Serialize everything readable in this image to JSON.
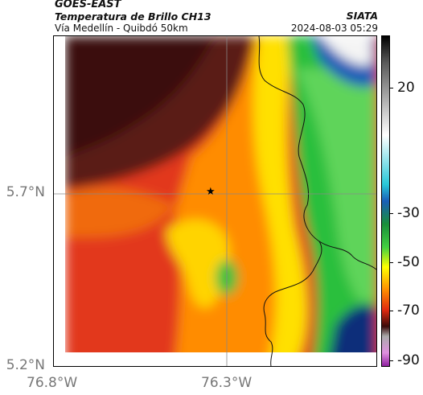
{
  "header": {
    "satellite": "GOES-EAST",
    "product": "Temperatura de Brillo CH13",
    "route": "Vía Medellín - Quibdó 50km",
    "agency": "SIATA",
    "timestamp": "2024-08-03 05:29"
  },
  "axes": {
    "y_ticks": [
      "5.7°N",
      "5.2°N"
    ],
    "x_ticks": [
      "76.8°W",
      "76.3°W"
    ]
  },
  "colorbar": {
    "labels": [
      "20",
      "-30",
      "-50",
      "-70",
      "-90"
    ],
    "colors": [
      "#000000",
      "#ffffff",
      "#1b8fd8",
      "#16b04a",
      "#ffff00",
      "#ff8a00",
      "#e02a10",
      "#3c0a0a",
      "#c838c8"
    ]
  },
  "map": {
    "marker_icon": "star-icon",
    "palette": {
      "dark_red": "#4a1512",
      "red": "#d63a12",
      "orange": "#ff8c00",
      "yellow": "#ffd400",
      "green": "#2bbf3d",
      "blue": "#1a5fb8",
      "white": "#f4f4f4"
    }
  }
}
